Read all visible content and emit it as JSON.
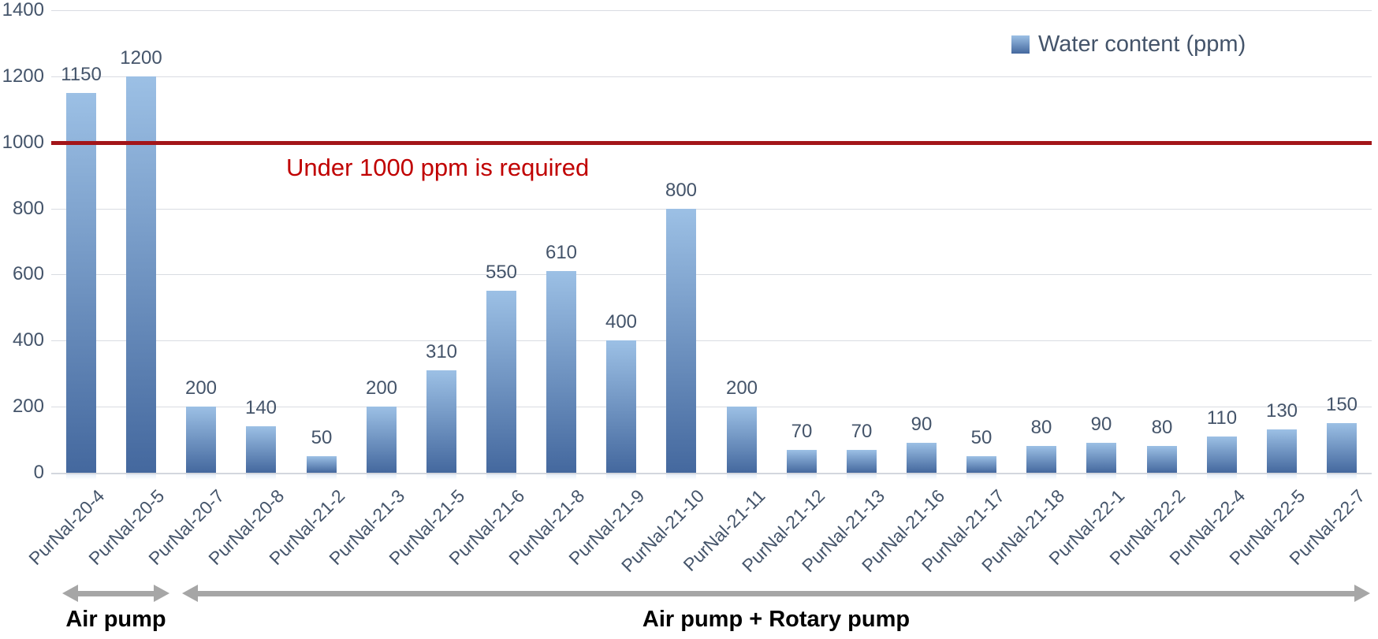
{
  "chart_data": {
    "type": "bar",
    "title": "",
    "xlabel": "",
    "ylabel": "",
    "legend": {
      "label": "Water content (ppm)",
      "position": "top-right"
    },
    "categories": [
      "PurNal-20-4",
      "PurNal-20-5",
      "PurNal-20-7",
      "PurNal-20-8",
      "PurNal-21-2",
      "PurNal-21-3",
      "PurNal-21-5",
      "PurNal-21-6",
      "PurNal-21-8",
      "PurNal-21-9",
      "PurNal-21-10",
      "PurNal-21-11",
      "PurNal-21-12",
      "PurNal-21-13",
      "PurNal-21-16",
      "PurNal-21-17",
      "PurNal-21-18",
      "PurNal-22-1",
      "PurNal-22-2",
      "PurNal-22-4",
      "PurNal-22-5",
      "PurNal-22-7"
    ],
    "values": [
      1150,
      1200,
      200,
      140,
      50,
      200,
      310,
      550,
      610,
      400,
      800,
      200,
      70,
      70,
      90,
      50,
      80,
      90,
      80,
      110,
      130,
      150
    ],
    "data_labels_shown": true,
    "ylim": [
      0,
      1400
    ],
    "yticks": [
      0,
      200,
      400,
      600,
      800,
      1000,
      1200,
      1400
    ],
    "grid": true,
    "threshold_line": {
      "value": 1000,
      "label": "Under 1000 ppm is required"
    },
    "groups": [
      {
        "label": "Air pump",
        "start_index": 0,
        "end_index": 1
      },
      {
        "label": "Air pump + Rotary pump",
        "start_index": 2,
        "end_index": 21
      }
    ],
    "colors": {
      "bar_gradient_top": "#9CC0E5",
      "bar_gradient_bottom": "#44689E",
      "threshold_line": "#A31519",
      "threshold_text": "#C00000",
      "axis_text": "#44546A",
      "gridline": "#D9DCE2",
      "arrow": "#A6A6A6",
      "group_label": "#000000"
    }
  }
}
